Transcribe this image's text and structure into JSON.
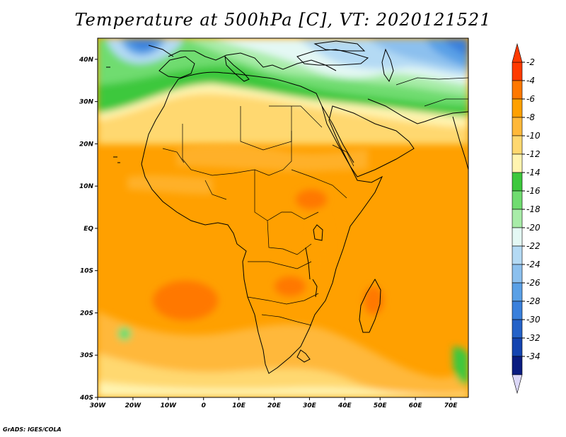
{
  "title": "Temperature at 500hPa [C], VT: 2020121521",
  "credit": "GrADS: IGES/COLA",
  "map": {
    "lon_range": [
      -30,
      75
    ],
    "lat_range": [
      -40,
      45
    ],
    "x_ticks": [
      "30W",
      "20W",
      "10W",
      "0",
      "10E",
      "20E",
      "30E",
      "40E",
      "50E",
      "60E",
      "70E"
    ],
    "y_ticks": [
      "40N",
      "30N",
      "20N",
      "10N",
      "EQ",
      "10S",
      "20S",
      "30S",
      "40S"
    ]
  },
  "colorbar": {
    "labels": [
      "-2",
      "-4",
      "-6",
      "-8",
      "-10",
      "-12",
      "-14",
      "-16",
      "-18",
      "-20",
      "-22",
      "-24",
      "-26",
      "-28",
      "-30",
      "-32",
      "-34"
    ],
    "colors": [
      "#ff3a00",
      "#ff7800",
      "#ffa000",
      "#ffb83a",
      "#ffd870",
      "#fff4b0",
      "#3cc83c",
      "#70dc70",
      "#a8eca8",
      "#e4f8f4",
      "#b4daf4",
      "#8cc0ee",
      "#5aa0e6",
      "#3a80dc",
      "#2462c8",
      "#1444b0",
      "#0a1c80"
    ]
  },
  "colors": {
    "background": "#ffffff",
    "coast": "#000000"
  }
}
